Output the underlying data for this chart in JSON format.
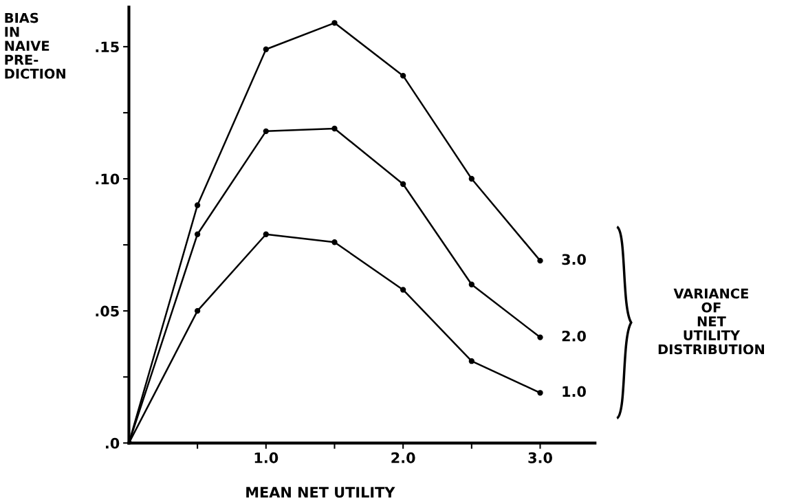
{
  "chart_data": {
    "type": "line",
    "xlabel": "MEAN NET UTILITY",
    "ylabel": "BIAS\nIN\nNAIVE\nPRE-\nDICTION",
    "x": [
      0,
      0.5,
      1.0,
      1.5,
      2.0,
      2.5,
      3.0
    ],
    "series": [
      {
        "name": "3.0",
        "color": "#000000",
        "values": [
          0,
          0.09,
          0.149,
          0.159,
          0.139,
          0.1,
          0.069
        ]
      },
      {
        "name": "2.0",
        "color": "#000000",
        "values": [
          0,
          0.079,
          0.118,
          0.119,
          0.098,
          0.06,
          0.04
        ]
      },
      {
        "name": "1.0",
        "color": "#000000",
        "values": [
          0,
          0.05,
          0.079,
          0.076,
          0.058,
          0.031,
          0.019
        ]
      }
    ],
    "xlim": [
      0,
      3.4
    ],
    "ylim": [
      0,
      0.165
    ],
    "xticks": [
      {
        "value": 0.5,
        "label": null
      },
      {
        "value": 1.0,
        "label": "1.0"
      },
      {
        "value": 1.5,
        "label": null
      },
      {
        "value": 2.0,
        "label": "2.0"
      },
      {
        "value": 2.5,
        "label": null
      },
      {
        "value": 3.0,
        "label": "3.0"
      }
    ],
    "yticks": [
      {
        "value": 0,
        "label": ".0"
      },
      {
        "value": 0.025,
        "label": null
      },
      {
        "value": 0.05,
        "label": ".05"
      },
      {
        "value": 0.075,
        "label": null
      },
      {
        "value": 0.1,
        "label": ".10"
      },
      {
        "value": 0.125,
        "label": null
      },
      {
        "value": 0.15,
        "label": ".15"
      }
    ],
    "annotations": [
      "VARIANCE\nOF\nNET\nUTILITY\nDISTRIBUTION"
    ],
    "marker": "circle",
    "line_style": "solid",
    "grid": false,
    "legend": false
  }
}
